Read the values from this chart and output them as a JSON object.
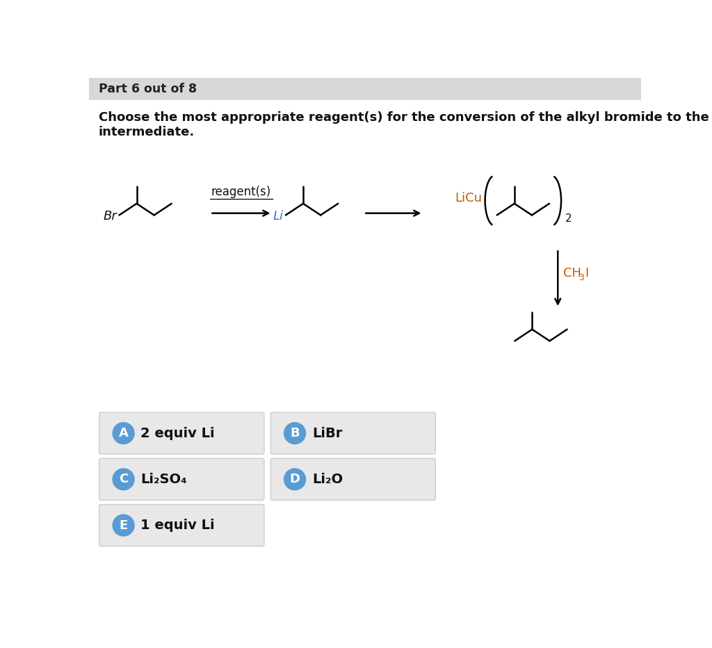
{
  "title_bar": "Part 6 out of 8",
  "title_bar_bg": "#d8d8d8",
  "question_text_line1": "Choose the most appropriate reagent(s) for the conversion of the alkyl bromide to the organolithium",
  "question_text_line2": "intermediate.",
  "bg_color": "#ffffff",
  "answer_bg": "#e8e8e8",
  "answer_border": "#cccccc",
  "circle_color": "#5b9bd5",
  "licu_color": "#c55a00",
  "li_color": "#4472c4",
  "br_color": "#111111",
  "ch3i_color": "#c55a00",
  "options": [
    {
      "label": "A",
      "text": "2 equiv Li",
      "row": 0,
      "col": 0
    },
    {
      "label": "B",
      "text": "LiBr",
      "row": 0,
      "col": 1
    },
    {
      "label": "C",
      "text": "Li₂SO₄",
      "row": 1,
      "col": 0
    },
    {
      "label": "D",
      "text": "Li₂O",
      "row": 1,
      "col": 1
    },
    {
      "label": "E",
      "text": "1 equiv Li",
      "row": 2,
      "col": 0
    }
  ]
}
